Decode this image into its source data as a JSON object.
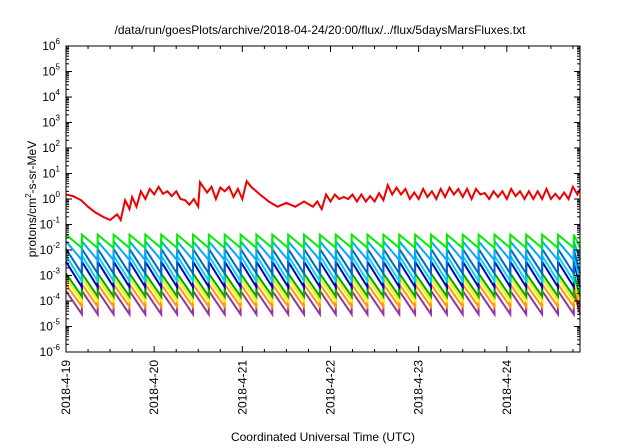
{
  "chart_data": {
    "type": "line",
    "title": "/data/run/goesPlots/archive/2018-04-24/20:00/flux/../flux/5daysMarsFluxes.txt",
    "xlabel": "Coordinated Universal Time (UTC)",
    "ylabel": {
      "prefix": "protons/cm",
      "sup": "2",
      "suffix": "-s-sr-MeV"
    },
    "y_scale": "log",
    "ylim_exponent": [
      -6,
      6
    ],
    "y_ticks": [
      {
        "base": "10",
        "exp": "-6"
      },
      {
        "base": "10",
        "exp": "-5"
      },
      {
        "base": "10",
        "exp": "-4"
      },
      {
        "base": "10",
        "exp": "-3"
      },
      {
        "base": "10",
        "exp": "-2"
      },
      {
        "base": "10",
        "exp": "-1"
      },
      {
        "base": "10",
        "exp": "0"
      },
      {
        "base": "10",
        "exp": "1"
      },
      {
        "base": "10",
        "exp": "2"
      },
      {
        "base": "10",
        "exp": "3"
      },
      {
        "base": "10",
        "exp": "4"
      },
      {
        "base": "10",
        "exp": "5"
      },
      {
        "base": "10",
        "exp": "6"
      }
    ],
    "x_unit": "days",
    "xlim": [
      "2018-04-19",
      "2018-04-24T20:00"
    ],
    "x_ticks": [
      "2018-4-19",
      "2018-4-20",
      "2018-4-21",
      "2018-4-22",
      "2018-4-23",
      "2018-4-24"
    ],
    "grid": false,
    "legend": "none",
    "series": [
      {
        "color": "#ee0000",
        "x": [
          0,
          0.08,
          0.17,
          0.25,
          0.33,
          0.42,
          0.5,
          0.58,
          0.62,
          0.67,
          0.72,
          0.75,
          0.8,
          0.85,
          0.9,
          0.95,
          1.0,
          1.05,
          1.1,
          1.15,
          1.2,
          1.25,
          1.3,
          1.35,
          1.4,
          1.45,
          1.5,
          1.52,
          1.6,
          1.65,
          1.7,
          1.75,
          1.8,
          1.85,
          1.9,
          1.95,
          2.0,
          2.05,
          2.1,
          2.2,
          2.3,
          2.4,
          2.5,
          2.6,
          2.7,
          2.8,
          2.85,
          2.9,
          2.95,
          3.0,
          3.05,
          3.1,
          3.15,
          3.2,
          3.25,
          3.3,
          3.35,
          3.4,
          3.45,
          3.5,
          3.55,
          3.6,
          3.65,
          3.7,
          3.75,
          3.8,
          3.85,
          3.9,
          3.95,
          4.0,
          4.05,
          4.1,
          4.15,
          4.2,
          4.25,
          4.3,
          4.35,
          4.4,
          4.45,
          4.5,
          4.55,
          4.6,
          4.65,
          4.7,
          4.75,
          4.8,
          4.85,
          4.9,
          4.95,
          5.0,
          5.05,
          5.1,
          5.15,
          5.2,
          5.25,
          5.3,
          5.35,
          5.4,
          5.45,
          5.5,
          5.55,
          5.6,
          5.65,
          5.7,
          5.75,
          5.8,
          5.83
        ],
        "y": [
          1.5,
          1.3,
          0.9,
          0.5,
          0.3,
          0.2,
          0.15,
          0.25,
          0.15,
          0.9,
          0.4,
          1.2,
          0.5,
          2.0,
          1.0,
          2.5,
          1.5,
          3.0,
          1.6,
          2.0,
          1.3,
          2.0,
          1.0,
          0.9,
          0.6,
          1.0,
          0.5,
          4.5,
          1.8,
          3.0,
          1.0,
          2.8,
          2.0,
          3.0,
          1.2,
          2.5,
          1.0,
          5.0,
          3.0,
          1.5,
          0.8,
          0.5,
          0.7,
          0.5,
          0.8,
          0.5,
          0.8,
          0.4,
          1.5,
          0.8,
          1.5,
          1.0,
          1.2,
          1.0,
          1.5,
          0.8,
          1.5,
          0.8,
          1.3,
          0.8,
          1.7,
          0.9,
          3.5,
          1.5,
          2.8,
          1.5,
          2.5,
          1.0,
          1.8,
          1.0,
          2.5,
          1.2,
          2.0,
          1.0,
          2.5,
          1.2,
          2.8,
          1.5,
          2.5,
          1.2,
          2.5,
          1.0,
          2.5,
          1.5,
          1.7,
          1.0,
          2.0,
          1.2,
          2.0,
          1.0,
          2.5,
          1.3,
          2.0,
          1.0,
          2.0,
          1.0,
          2.0,
          1.0,
          2.5,
          1.0,
          1.6,
          1.0,
          1.8,
          1.0,
          3.0,
          1.5,
          2.5
        ]
      },
      {
        "color": "#00ee00",
        "sawtooth": {
          "period_days": 0.18,
          "peak": 0.04,
          "trough": 0.012,
          "start_days": 0,
          "end_days": 5.83
        }
      },
      {
        "color": "#00aaff",
        "sawtooth": {
          "period_days": 0.18,
          "peak": 0.022,
          "trough": 0.004,
          "start_days": 0,
          "end_days": 5.83
        }
      },
      {
        "color": "#0066cc",
        "sawtooth": {
          "period_days": 0.18,
          "peak": 0.011,
          "trough": 0.0012,
          "start_days": 0,
          "end_days": 5.83
        }
      },
      {
        "color": "#00dddd",
        "sawtooth": {
          "period_days": 0.18,
          "peak": 0.006,
          "trough": 0.0006,
          "start_days": 0,
          "end_days": 5.83
        }
      },
      {
        "color": "#0000cc",
        "sawtooth": {
          "period_days": 0.18,
          "peak": 0.0035,
          "trough": 0.00035,
          "start_days": 0,
          "end_days": 5.83
        }
      },
      {
        "color": "#00aa00",
        "sawtooth": {
          "period_days": 0.18,
          "peak": 0.0012,
          "trough": 0.00015,
          "start_days": 0,
          "end_days": 5.83
        }
      },
      {
        "color": "#ffee00",
        "sawtooth": {
          "period_days": 0.18,
          "peak": 0.0008,
          "trough": 0.0001,
          "start_days": 0,
          "end_days": 5.83
        }
      },
      {
        "color": "#ff9900",
        "sawtooth": {
          "period_days": 0.18,
          "peak": 0.00045,
          "trough": 6e-05,
          "start_days": 0,
          "end_days": 5.83
        }
      },
      {
        "color": "#993399",
        "sawtooth": {
          "period_days": 0.18,
          "peak": 0.00025,
          "trough": 3e-05,
          "start_days": 0,
          "end_days": 5.83
        }
      }
    ]
  }
}
